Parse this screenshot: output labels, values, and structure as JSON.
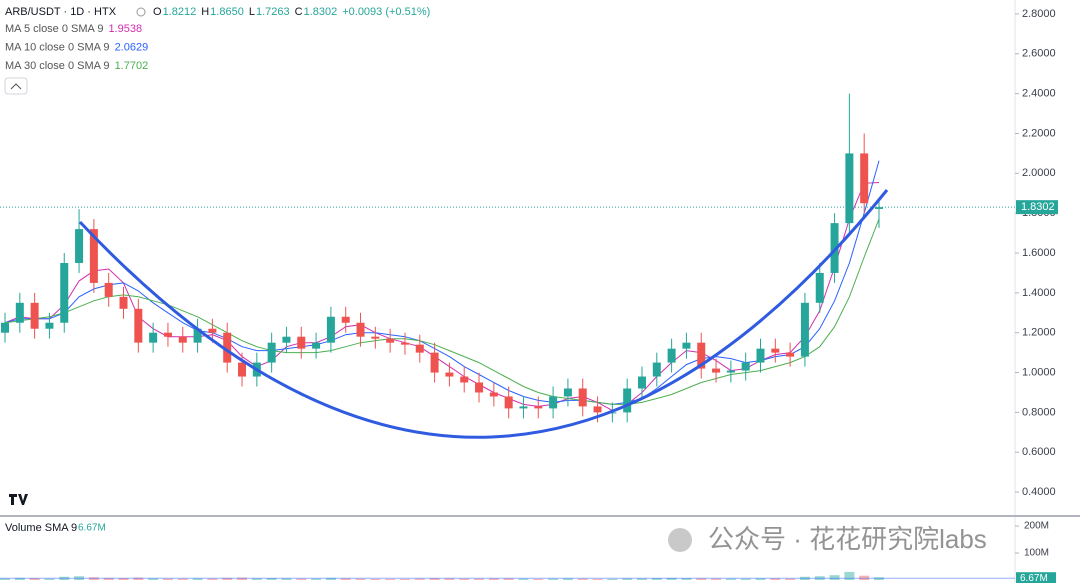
{
  "chart_data": {
    "type": "candlestick",
    "title": "ARB/USDT · 1D · HTX",
    "ohlc_legend": [
      [
        "O",
        "1.8212"
      ],
      [
        "H",
        "1.8650"
      ],
      [
        "L",
        "1.7263"
      ],
      [
        "C",
        "1.8302"
      ]
    ],
    "change": "+0.0093 (+0.51%)",
    "open": [
      1.2,
      1.25,
      1.35,
      1.22,
      1.25,
      1.55,
      1.72,
      1.45,
      1.38,
      1.32,
      1.15,
      1.2,
      1.18,
      1.15,
      1.22,
      1.2,
      1.05,
      0.98,
      1.05,
      1.15,
      1.18,
      1.12,
      1.15,
      1.28,
      1.25,
      1.18,
      1.17,
      1.15,
      1.14,
      1.1,
      1.0,
      0.98,
      0.95,
      0.9,
      0.88,
      0.82,
      0.83,
      0.82,
      0.88,
      0.92,
      0.83,
      0.8,
      0.8,
      0.92,
      0.98,
      1.05,
      1.12,
      1.15,
      1.02,
      1.0,
      1.01,
      1.05,
      1.12,
      1.1,
      1.08,
      1.35,
      1.5,
      1.75,
      2.1,
      1.8212
    ],
    "high": [
      1.3,
      1.4,
      1.4,
      1.3,
      1.6,
      1.82,
      1.77,
      1.5,
      1.43,
      1.37,
      1.25,
      1.25,
      1.23,
      1.27,
      1.27,
      1.25,
      1.1,
      1.1,
      1.2,
      1.23,
      1.23,
      1.2,
      1.33,
      1.33,
      1.3,
      1.23,
      1.22,
      1.2,
      1.19,
      1.15,
      1.05,
      1.03,
      1.0,
      0.95,
      0.93,
      0.88,
      0.88,
      0.93,
      0.97,
      0.97,
      0.88,
      0.85,
      0.97,
      1.03,
      1.1,
      1.17,
      1.2,
      1.2,
      1.07,
      1.06,
      1.1,
      1.17,
      1.17,
      1.15,
      1.4,
      1.55,
      1.8,
      2.4,
      2.2,
      1.865
    ],
    "low": [
      1.15,
      1.2,
      1.17,
      1.17,
      1.2,
      1.5,
      1.4,
      1.33,
      1.27,
      1.1,
      1.1,
      1.13,
      1.1,
      1.1,
      1.15,
      1.0,
      0.93,
      0.93,
      1.0,
      1.1,
      1.07,
      1.07,
      1.1,
      1.2,
      1.13,
      1.12,
      1.1,
      1.09,
      1.05,
      0.95,
      0.93,
      0.9,
      0.85,
      0.83,
      0.77,
      0.77,
      0.77,
      0.77,
      0.83,
      0.78,
      0.75,
      0.75,
      0.75,
      0.87,
      0.93,
      1.0,
      1.07,
      0.97,
      0.95,
      0.95,
      0.96,
      1.0,
      1.05,
      1.03,
      1.03,
      1.3,
      1.45,
      1.7,
      1.8,
      1.7263
    ],
    "close": [
      1.25,
      1.35,
      1.22,
      1.25,
      1.55,
      1.72,
      1.45,
      1.38,
      1.32,
      1.15,
      1.2,
      1.18,
      1.15,
      1.22,
      1.2,
      1.05,
      0.98,
      1.05,
      1.15,
      1.18,
      1.12,
      1.15,
      1.28,
      1.25,
      1.18,
      1.17,
      1.15,
      1.14,
      1.1,
      1.0,
      0.98,
      0.95,
      0.9,
      0.88,
      0.82,
      0.83,
      0.82,
      0.88,
      0.92,
      0.83,
      0.8,
      0.8,
      0.92,
      0.98,
      1.05,
      1.12,
      1.15,
      1.02,
      1.0,
      1.01,
      1.05,
      1.12,
      1.1,
      1.08,
      1.35,
      1.5,
      1.75,
      2.1,
      1.85,
      1.8302
    ],
    "colors": {
      "up": "#26a69a",
      "down": "#ef5350"
    },
    "series": [
      {
        "name": "MA 5 close 0 SMA 9",
        "color": "#d02fb0",
        "values": [
          1.25,
          1.28,
          1.27,
          1.27,
          1.34,
          1.46,
          1.51,
          1.52,
          1.45,
          1.28,
          1.22,
          1.18,
          1.18,
          1.18,
          1.19,
          1.16,
          1.08,
          1.03,
          1.06,
          1.13,
          1.15,
          1.15,
          1.18,
          1.23,
          1.24,
          1.2,
          1.17,
          1.15,
          1.13,
          1.08,
          1.03,
          0.98,
          0.94,
          0.9,
          0.87,
          0.84,
          0.83,
          0.84,
          0.87,
          0.88,
          0.85,
          0.81,
          0.84,
          0.9,
          0.98,
          1.05,
          1.11,
          1.1,
          1.06,
          1.01,
          1.02,
          1.06,
          1.09,
          1.1,
          1.18,
          1.31,
          1.53,
          1.77,
          1.95,
          1.9538
        ]
      },
      {
        "name": "MA 10 close 0 SMA 9",
        "color": "#2962ff",
        "values": [
          1.25,
          1.27,
          1.27,
          1.27,
          1.3,
          1.38,
          1.42,
          1.44,
          1.45,
          1.41,
          1.35,
          1.3,
          1.25,
          1.21,
          1.2,
          1.17,
          1.13,
          1.11,
          1.11,
          1.12,
          1.13,
          1.14,
          1.16,
          1.19,
          1.2,
          1.2,
          1.19,
          1.18,
          1.16,
          1.12,
          1.08,
          1.03,
          0.99,
          0.95,
          0.91,
          0.88,
          0.86,
          0.85,
          0.86,
          0.86,
          0.85,
          0.84,
          0.85,
          0.87,
          0.92,
          0.98,
          1.04,
          1.07,
          1.08,
          1.07,
          1.05,
          1.06,
          1.08,
          1.09,
          1.13,
          1.22,
          1.36,
          1.55,
          1.8,
          2.0629
        ]
      },
      {
        "name": "MA 30 close 0 SMA 9",
        "color": "#4caf50",
        "values": [
          1.25,
          1.26,
          1.27,
          1.28,
          1.3,
          1.33,
          1.36,
          1.38,
          1.39,
          1.38,
          1.36,
          1.34,
          1.31,
          1.28,
          1.24,
          1.2,
          1.16,
          1.13,
          1.11,
          1.1,
          1.1,
          1.1,
          1.11,
          1.13,
          1.15,
          1.16,
          1.17,
          1.17,
          1.16,
          1.14,
          1.11,
          1.08,
          1.05,
          1.01,
          0.97,
          0.93,
          0.9,
          0.88,
          0.87,
          0.86,
          0.85,
          0.84,
          0.84,
          0.85,
          0.87,
          0.89,
          0.92,
          0.95,
          0.97,
          0.99,
          1.0,
          1.01,
          1.03,
          1.05,
          1.08,
          1.13,
          1.23,
          1.38,
          1.58,
          1.7702
        ]
      }
    ],
    "ylim": [
      0.285,
      2.87
    ],
    "yticks": [
      {
        "value": 0.4,
        "label": "0.4000"
      },
      {
        "value": 0.6,
        "label": "0.6000"
      },
      {
        "value": 0.8,
        "label": "0.8000"
      },
      {
        "value": 1.0,
        "label": "1.0000"
      },
      {
        "value": 1.2,
        "label": "1.2000"
      },
      {
        "value": 1.4,
        "label": "1.4000"
      },
      {
        "value": 1.6,
        "label": "1.6000"
      },
      {
        "value": 1.8,
        "label": "1.8000"
      },
      {
        "value": 2.0,
        "label": "2.0000"
      },
      {
        "value": 2.2,
        "label": "2.2000"
      },
      {
        "value": 2.4,
        "label": "2.4000"
      },
      {
        "value": 2.6,
        "label": "2.6000"
      },
      {
        "value": 2.8,
        "label": "2.8000"
      }
    ],
    "grid": false,
    "volume": {
      "name": "Volume SMA 9",
      "sma": {
        "value": 6.67,
        "label": "6.67M"
      },
      "values": [
        6,
        8,
        7,
        5,
        12,
        14,
        10,
        8,
        7,
        9,
        6,
        5,
        5,
        6,
        5,
        8,
        9,
        6,
        7,
        6,
        5,
        5,
        8,
        6,
        5,
        4,
        4,
        4,
        5,
        7,
        6,
        5,
        5,
        6,
        6,
        5,
        4,
        5,
        6,
        5,
        4,
        4,
        6,
        6,
        7,
        8,
        7,
        6,
        5,
        5,
        5,
        6,
        6,
        5,
        12,
        14,
        18,
        30,
        16,
        10
      ],
      "ylim": [
        0,
        230
      ],
      "yticks": [
        {
          "value": 100,
          "label": "100M"
        },
        {
          "value": 200,
          "label": "200M"
        }
      ]
    }
  },
  "watermark": "公众号 · 花花研究院labs"
}
